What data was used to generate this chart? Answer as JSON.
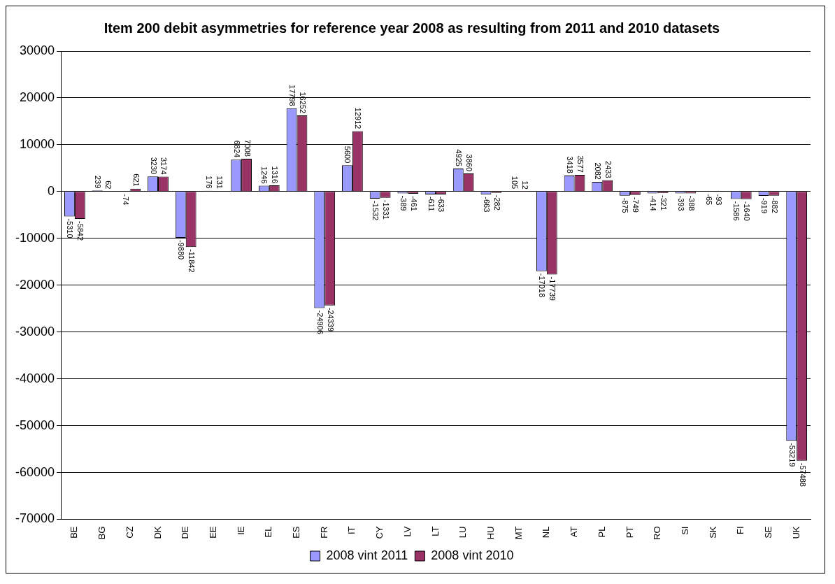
{
  "chart_data": {
    "type": "bar",
    "title": "Item 200 debit asymmetries for reference year 2008 as resulting from 2011 and 2010 datasets",
    "categories": [
      "BE",
      "BG",
      "CZ",
      "DK",
      "DE",
      "EE",
      "IE",
      "EL",
      "ES",
      "FR",
      "IT",
      "CY",
      "LV",
      "LT",
      "LU",
      "HU",
      "MT",
      "NL",
      "AT",
      "PL",
      "PT",
      "RO",
      "SI",
      "SK",
      "FI",
      "SE",
      "UK"
    ],
    "series": [
      {
        "name": "2008 vint 2011",
        "color": "#9999ff",
        "values": [
          -5310,
          239,
          -74,
          3230,
          -9880,
          176,
          6824,
          1246,
          17798,
          -24906,
          5600,
          -1532,
          -389,
          -611,
          4925,
          -663,
          105,
          -17018,
          3418,
          2082,
          -875,
          -414,
          -393,
          -65,
          -1586,
          -919,
          -53219
        ]
      },
      {
        "name": "2008 vint 2010",
        "color": "#993366",
        "values": [
          -5842,
          62,
          621,
          3174,
          -11842,
          131,
          7008,
          1316,
          16252,
          -24339,
          12912,
          -1331,
          -461,
          -633,
          3860,
          -282,
          12,
          -17739,
          3577,
          2433,
          -749,
          -321,
          -388,
          -93,
          -1640,
          -882,
          -57488
        ]
      }
    ],
    "ylim": [
      -70000,
      30000
    ],
    "yticks": [
      -70000,
      -60000,
      -50000,
      -40000,
      -30000,
      -20000,
      -10000,
      0,
      10000,
      20000,
      30000
    ],
    "grid": "y",
    "legend": "bottom",
    "data_labels": true
  }
}
